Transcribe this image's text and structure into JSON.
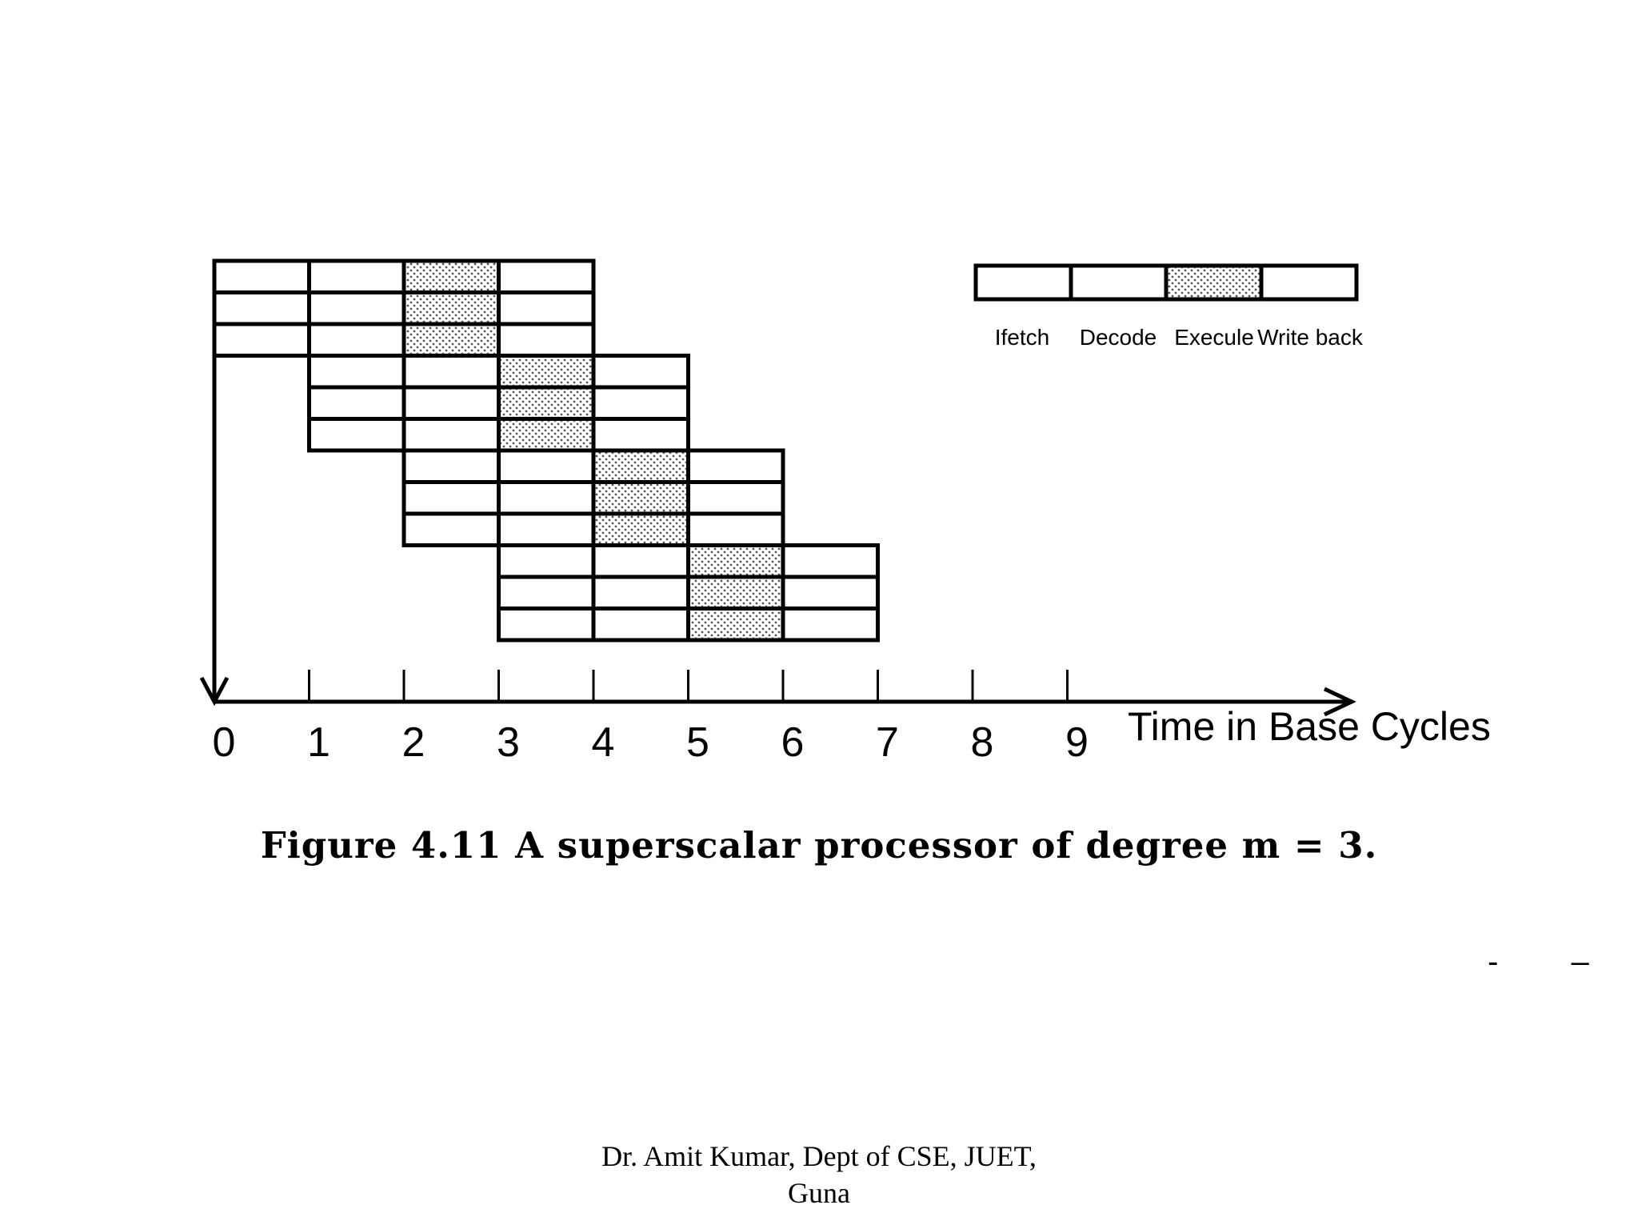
{
  "chart_data": {
    "type": "table",
    "description": "Superscalar pipeline of degree 3: instructions issued three per base cycle, each passing through four stages",
    "degree": 3,
    "stages": [
      "Ifetch",
      "Decode",
      "Execule",
      "Write back"
    ],
    "execute_stage_index": 2,
    "groups": [
      {
        "start_cycle": 0,
        "instructions": 3
      },
      {
        "start_cycle": 1,
        "instructions": 3
      },
      {
        "start_cycle": 2,
        "instructions": 3
      },
      {
        "start_cycle": 3,
        "instructions": 3
      }
    ],
    "x_axis": {
      "title": "Time in Base Cycles",
      "tick_labels": [
        "0",
        "1",
        "2",
        "3",
        "4",
        "5",
        "6",
        "7",
        "8",
        "9"
      ],
      "range": [
        0,
        9
      ]
    },
    "legend": {
      "placement": "top-right",
      "labels": [
        "Ifetch",
        "Decode",
        "Execule",
        "Write back"
      ]
    },
    "colors": {
      "line": "#000000",
      "execute_fill_dot": "#555555",
      "background": "#ffffff"
    }
  },
  "caption": "Figure 4.11 A superscalar processor of degree m = 3.",
  "footer": {
    "line1": "Dr. Amit Kumar, Dept of CSE, JUET,",
    "line2": "Guna"
  },
  "dashes": {
    "a": "-",
    "b": "–"
  }
}
